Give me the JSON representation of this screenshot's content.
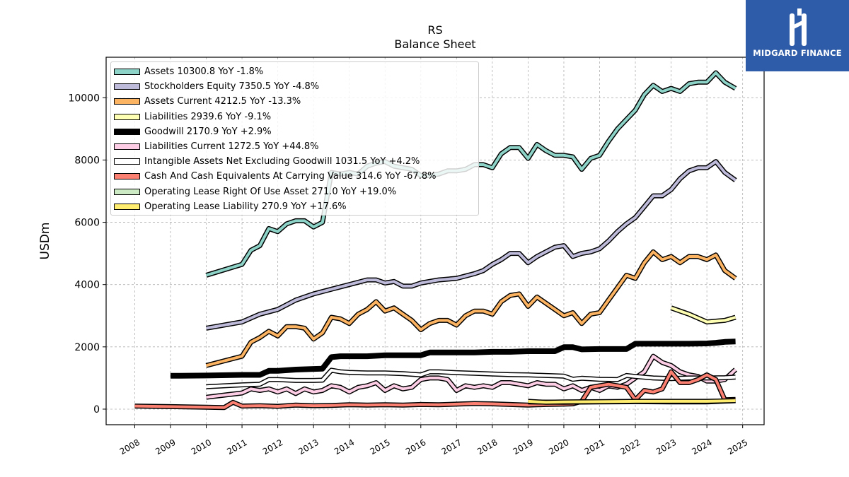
{
  "chart_data": {
    "type": "line",
    "title": "RS",
    "subtitle": "Balance  Sheet",
    "xlabel": "",
    "ylabel": "USDm",
    "ylim": [
      -500,
      11300
    ],
    "xlim": [
      2007.2,
      2025.6
    ],
    "yticks": [
      0,
      2000,
      4000,
      6000,
      8000,
      10000
    ],
    "xticks": [
      "2008",
      "2009",
      "2010",
      "2011",
      "2012",
      "2013",
      "2014",
      "2015",
      "2016",
      "2017",
      "2018",
      "2019",
      "2020",
      "2021",
      "2022",
      "2023",
      "2024",
      "2025"
    ],
    "grid": true,
    "legend_position": "top-left",
    "series": [
      {
        "name": "Assets",
        "label": "Assets  10300.8 YoY -1.8%",
        "color": "#8dd3c7",
        "x": [
          2010.0,
          2011.0,
          2011.25,
          2011.5,
          2011.75,
          2012.0,
          2012.25,
          2012.5,
          2012.75,
          2013.0,
          2013.25,
          2013.5,
          2013.75,
          2014.0,
          2014.25,
          2014.5,
          2014.75,
          2015.0,
          2015.25,
          2015.5,
          2015.75,
          2016.0,
          2016.25,
          2016.5,
          2016.75,
          2017.0,
          2017.25,
          2017.5,
          2017.75,
          2018.0,
          2018.25,
          2018.5,
          2018.75,
          2019.0,
          2019.25,
          2019.5,
          2019.75,
          2020.0,
          2020.25,
          2020.5,
          2020.75,
          2021.0,
          2021.25,
          2021.5,
          2021.75,
          2022.0,
          2022.25,
          2022.5,
          2022.75,
          2023.0,
          2023.25,
          2023.5,
          2023.75,
          2024.0,
          2024.25,
          2024.5,
          2024.8
        ],
        "y": [
          4300,
          4650,
          5100,
          5250,
          5800,
          5700,
          5950,
          6050,
          6050,
          5850,
          6000,
          7600,
          7550,
          7600,
          7550,
          7800,
          7900,
          7950,
          7800,
          7750,
          7700,
          7500,
          7500,
          7550,
          7650,
          7650,
          7700,
          7850,
          7850,
          7750,
          8200,
          8400,
          8400,
          8050,
          8500,
          8300,
          8150,
          8150,
          8100,
          7700,
          8050,
          8150,
          8600,
          9000,
          9300,
          9600,
          10100,
          10400,
          10200,
          10300,
          10200,
          10450,
          10500,
          10500,
          10800,
          10500,
          10300
        ]
      },
      {
        "name": "Stockholders Equity",
        "label": "Stockholders Equity  7350.5 YoY -4.8%",
        "color": "#bebada",
        "x": [
          2010.0,
          2011.0,
          2011.5,
          2012.0,
          2012.5,
          2013.0,
          2013.5,
          2014.0,
          2014.5,
          2014.75,
          2015.0,
          2015.25,
          2015.5,
          2015.75,
          2016.0,
          2016.5,
          2017.0,
          2017.5,
          2017.75,
          2018.0,
          2018.25,
          2018.5,
          2018.75,
          2019.0,
          2019.25,
          2019.5,
          2019.75,
          2020.0,
          2020.25,
          2020.5,
          2020.75,
          2021.0,
          2021.25,
          2021.5,
          2021.75,
          2022.0,
          2022.25,
          2022.5,
          2022.75,
          2023.0,
          2023.25,
          2023.5,
          2023.75,
          2024.0,
          2024.25,
          2024.5,
          2024.8
        ],
        "y": [
          2600,
          2800,
          3050,
          3200,
          3500,
          3700,
          3850,
          4000,
          4150,
          4150,
          4050,
          4100,
          3950,
          3950,
          4050,
          4150,
          4200,
          4350,
          4450,
          4650,
          4800,
          5000,
          5000,
          4700,
          4900,
          5050,
          5200,
          5250,
          4900,
          5000,
          5050,
          5150,
          5400,
          5700,
          5950,
          6150,
          6500,
          6850,
          6850,
          7050,
          7400,
          7650,
          7750,
          7750,
          7950,
          7600,
          7350
        ]
      },
      {
        "name": "Assets Current",
        "label": "Assets Current  4212.5 YoY -13.3%",
        "color": "#fdb462",
        "x": [
          2010.0,
          2011.0,
          2011.25,
          2011.5,
          2011.75,
          2012.0,
          2012.25,
          2012.5,
          2012.75,
          2013.0,
          2013.25,
          2013.5,
          2013.75,
          2014.0,
          2014.25,
          2014.5,
          2014.75,
          2015.0,
          2015.25,
          2015.5,
          2015.75,
          2016.0,
          2016.25,
          2016.5,
          2016.75,
          2017.0,
          2017.25,
          2017.5,
          2017.75,
          2018.0,
          2018.25,
          2018.5,
          2018.75,
          2019.0,
          2019.25,
          2019.5,
          2019.75,
          2020.0,
          2020.25,
          2020.5,
          2020.75,
          2021.0,
          2021.25,
          2021.5,
          2021.75,
          2022.0,
          2022.25,
          2022.5,
          2022.75,
          2023.0,
          2023.25,
          2023.5,
          2023.75,
          2024.0,
          2024.25,
          2024.5,
          2024.8
        ],
        "y": [
          1400,
          1700,
          2150,
          2300,
          2500,
          2350,
          2650,
          2650,
          2600,
          2250,
          2450,
          2950,
          2900,
          2750,
          3050,
          3200,
          3450,
          3150,
          3250,
          3050,
          2850,
          2550,
          2750,
          2850,
          2850,
          2700,
          3000,
          3150,
          3150,
          3050,
          3450,
          3650,
          3700,
          3300,
          3600,
          3400,
          3200,
          3000,
          3100,
          2750,
          3050,
          3100,
          3500,
          3900,
          4300,
          4200,
          4700,
          5050,
          4800,
          4900,
          4700,
          4900,
          4900,
          4800,
          4950,
          4450,
          4200
        ]
      },
      {
        "name": "Liabilities",
        "label": "Liabilities  2939.6 YoY -9.1%",
        "color": "#ffffb3",
        "x": [
          2023.0,
          2023.5,
          2024.0,
          2024.5,
          2024.8
        ],
        "y": [
          3250,
          3050,
          2800,
          2850,
          2950
        ]
      },
      {
        "name": "Goodwill",
        "label": "Goodwill  2170.9 YoY +2.9%",
        "color": "#000000",
        "x": [
          2009.0,
          2010.0,
          2011.0,
          2011.5,
          2011.75,
          2012.0,
          2012.5,
          2013.0,
          2013.25,
          2013.5,
          2013.75,
          2014.0,
          2014.5,
          2015.0,
          2015.5,
          2016.0,
          2016.25,
          2016.5,
          2017.0,
          2017.5,
          2018.0,
          2018.5,
          2019.0,
          2019.5,
          2019.75,
          2020.0,
          2020.25,
          2020.5,
          2021.0,
          2021.5,
          2021.75,
          2022.0,
          2022.5,
          2023.0,
          2023.5,
          2024.0,
          2024.25,
          2024.5,
          2024.8
        ],
        "y": [
          1070,
          1080,
          1100,
          1100,
          1230,
          1230,
          1270,
          1290,
          1300,
          1670,
          1700,
          1700,
          1700,
          1730,
          1730,
          1730,
          1820,
          1820,
          1820,
          1820,
          1840,
          1840,
          1860,
          1860,
          1860,
          1990,
          1990,
          1920,
          1930,
          1930,
          1930,
          2100,
          2100,
          2100,
          2100,
          2110,
          2130,
          2160,
          2170
        ]
      },
      {
        "name": "Liabilities Current",
        "label": "Liabilities Current  1272.5 YoY +44.8%",
        "color": "#fccde5",
        "x": [
          2010.0,
          2010.5,
          2011.0,
          2011.25,
          2011.5,
          2011.75,
          2012.0,
          2012.25,
          2012.5,
          2012.75,
          2013.0,
          2013.25,
          2013.5,
          2013.75,
          2014.0,
          2014.25,
          2014.5,
          2014.75,
          2015.0,
          2015.25,
          2015.5,
          2015.75,
          2016.0,
          2016.25,
          2016.5,
          2016.75,
          2017.0,
          2017.25,
          2017.5,
          2017.75,
          2018.0,
          2018.25,
          2018.5,
          2018.75,
          2019.0,
          2019.25,
          2019.5,
          2019.75,
          2020.0,
          2020.25,
          2020.5,
          2020.75,
          2021.0,
          2021.25,
          2021.5,
          2021.75,
          2022.0,
          2022.25,
          2022.5,
          2022.75,
          2023.0,
          2023.25,
          2023.5,
          2023.75,
          2024.0,
          2024.25,
          2024.5,
          2024.8
        ],
        "y": [
          380,
          450,
          520,
          650,
          600,
          650,
          550,
          650,
          500,
          650,
          550,
          600,
          750,
          700,
          550,
          700,
          750,
          850,
          600,
          750,
          650,
          700,
          950,
          1000,
          1000,
          950,
          600,
          750,
          700,
          750,
          700,
          850,
          850,
          800,
          750,
          850,
          800,
          800,
          650,
          750,
          600,
          700,
          600,
          750,
          700,
          800,
          1000,
          1200,
          1700,
          1500,
          1400,
          1200,
          1100,
          1050,
          900,
          900,
          950,
          1270
        ]
      },
      {
        "name": "Intangible Assets Net Excluding Goodwill",
        "label": "Intangible Assets Net Excluding Goodwill  1031.5 YoY +4.2%",
        "color": "#ffffff",
        "x": [
          2010.0,
          2011.0,
          2011.5,
          2011.75,
          2012.0,
          2012.5,
          2013.0,
          2013.25,
          2013.5,
          2013.75,
          2014.0,
          2014.5,
          2015.0,
          2015.5,
          2016.0,
          2016.25,
          2016.5,
          2017.0,
          2017.5,
          2018.0,
          2018.5,
          2019.0,
          2019.5,
          2020.0,
          2020.25,
          2020.5,
          2021.0,
          2021.5,
          2021.75,
          2022.0,
          2022.5,
          2023.0,
          2023.5,
          2024.0,
          2024.5,
          2024.8
        ],
        "y": [
          720,
          780,
          800,
          950,
          950,
          920,
          920,
          930,
          1250,
          1200,
          1180,
          1160,
          1160,
          1140,
          1100,
          1200,
          1200,
          1170,
          1150,
          1130,
          1110,
          1100,
          1080,
          1060,
          960,
          990,
          960,
          950,
          1080,
          1050,
          1000,
          980,
          1000,
          1000,
          1010,
          1030
        ]
      },
      {
        "name": "Cash And Cash Equivalents At Carrying Value",
        "label": "Cash And Cash Equivalents At Carrying Value  314.6 YoY -67.8%",
        "color": "#fb8072",
        "x": [
          2008.0,
          2009.0,
          2010.0,
          2010.5,
          2010.75,
          2011.0,
          2011.5,
          2012.0,
          2012.5,
          2013.0,
          2013.5,
          2014.0,
          2014.5,
          2015.0,
          2015.5,
          2016.0,
          2016.5,
          2017.0,
          2017.5,
          2018.0,
          2018.5,
          2019.0,
          2019.5,
          2020.0,
          2020.25,
          2020.5,
          2020.75,
          2021.0,
          2021.25,
          2021.5,
          2021.75,
          2022.0,
          2022.25,
          2022.5,
          2022.75,
          2023.0,
          2023.25,
          2023.5,
          2023.75,
          2024.0,
          2024.25,
          2024.5,
          2024.8
        ],
        "y": [
          100,
          80,
          60,
          50,
          220,
          100,
          110,
          90,
          130,
          110,
          120,
          140,
          130,
          140,
          130,
          150,
          140,
          160,
          180,
          170,
          150,
          130,
          150,
          160,
          170,
          250,
          700,
          750,
          800,
          750,
          700,
          300,
          600,
          550,
          650,
          1200,
          850,
          850,
          950,
          1100,
          950,
          300,
          310
        ]
      },
      {
        "name": "Operating Lease Right Of Use Asset",
        "label": "Operating Lease Right Of Use Asset  271.0 YoY +19.0%",
        "color": "#ccebc5",
        "x": [
          2019.0,
          2020.0,
          2021.0,
          2022.0,
          2023.0,
          2024.0,
          2024.8
        ],
        "y": [
          230,
          220,
          230,
          240,
          230,
          230,
          271
        ]
      },
      {
        "name": "Operating Lease Liability",
        "label": "Operating Lease Liability  270.9 YoY +17.6%",
        "color": "#ffed6f",
        "x": [
          2019.0,
          2019.5,
          2020.0,
          2021.0,
          2022.0,
          2023.0,
          2024.0,
          2024.8
        ],
        "y": [
          250,
          220,
          230,
          240,
          250,
          250,
          250,
          271
        ]
      }
    ]
  },
  "logo": {
    "text": "MIDGARD FINANCE"
  }
}
